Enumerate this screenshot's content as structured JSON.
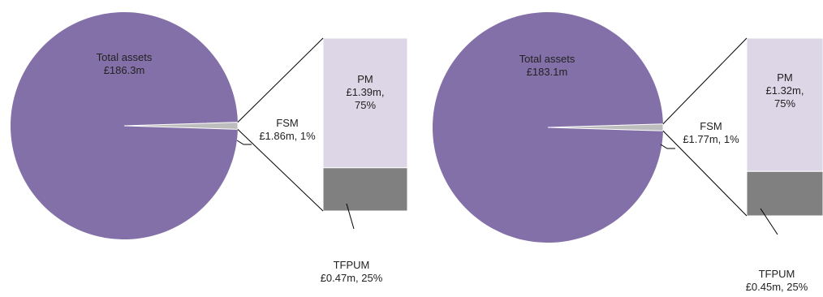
{
  "colors": {
    "pie_main": "#8470A8",
    "pie_slice": "#BDBDBD",
    "bar_top": "#DCD6E6",
    "bar_bottom": "#808080",
    "line": "#000000"
  },
  "chart_data": [
    {
      "type": "pie",
      "pie": {
        "slices": [
          {
            "name": "Total assets",
            "value": 186.3,
            "label_lines": [
              "Total assets",
              "£186.3m"
            ]
          },
          {
            "name": "FSM",
            "value": 1.86,
            "percent": 1,
            "label_lines": [
              "FSM",
              "£1.86m, 1%"
            ]
          }
        ]
      },
      "breakdown": {
        "of": "FSM",
        "segments": [
          {
            "name": "PM",
            "value": 1.39,
            "percent": 75,
            "label_lines": [
              "PM",
              "£1.39m,",
              "75%"
            ]
          },
          {
            "name": "TFPUM",
            "value": 0.47,
            "percent": 25,
            "label_lines": [
              "TFPUM",
              "£0.47m, 25%"
            ]
          }
        ]
      }
    },
    {
      "type": "pie",
      "pie": {
        "slices": [
          {
            "name": "Total assets",
            "value": 183.1,
            "label_lines": [
              "Total assets",
              "£183.1m"
            ]
          },
          {
            "name": "FSM",
            "value": 1.77,
            "percent": 1,
            "label_lines": [
              "FSM",
              "£1.77m, 1%"
            ]
          }
        ]
      },
      "breakdown": {
        "of": "FSM",
        "segments": [
          {
            "name": "PM",
            "value": 1.32,
            "percent": 75,
            "label_lines": [
              "PM",
              "£1.32m,",
              "75%"
            ]
          },
          {
            "name": "TFPUM",
            "value": 0.45,
            "percent": 25,
            "label_lines": [
              "TFPUM",
              "£0.45m, 25%"
            ]
          }
        ]
      }
    }
  ]
}
